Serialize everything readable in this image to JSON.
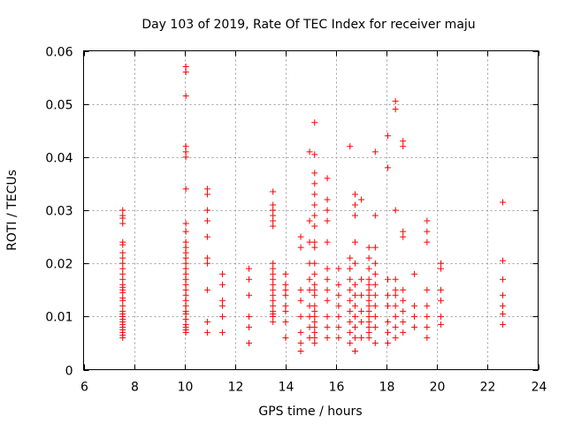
{
  "chart_data": {
    "type": "scatter",
    "title": "Day 103 of 2019, Rate Of TEC Index for receiver maju",
    "xlabel": "GPS time / hours",
    "ylabel": "ROTI / TECUs",
    "xlim": [
      6,
      24
    ],
    "ylim": [
      0,
      0.06
    ],
    "x_ticks": [
      "6",
      "8",
      "10",
      "12",
      "14",
      "16",
      "18",
      "20",
      "22",
      "24"
    ],
    "y_ticks": [
      "0",
      "0.01",
      "0.02",
      "0.03",
      "0.04",
      "0.05",
      "0.06"
    ],
    "grid": true,
    "marker": "+",
    "color": "#ff0000",
    "series": [
      {
        "name": "ROTI",
        "points": [
          [
            7.55,
            0.006
          ],
          [
            7.55,
            0.0065
          ],
          [
            7.55,
            0.007
          ],
          [
            7.55,
            0.0075
          ],
          [
            7.55,
            0.008
          ],
          [
            7.55,
            0.0085
          ],
          [
            7.55,
            0.009
          ],
          [
            7.55,
            0.0095
          ],
          [
            7.55,
            0.01
          ],
          [
            7.55,
            0.0105
          ],
          [
            7.55,
            0.011
          ],
          [
            7.55,
            0.012
          ],
          [
            7.55,
            0.013
          ],
          [
            7.55,
            0.0135
          ],
          [
            7.55,
            0.0145
          ],
          [
            7.55,
            0.015
          ],
          [
            7.55,
            0.0155
          ],
          [
            7.55,
            0.016
          ],
          [
            7.55,
            0.017
          ],
          [
            7.55,
            0.018
          ],
          [
            7.55,
            0.019
          ],
          [
            7.55,
            0.02
          ],
          [
            7.55,
            0.021
          ],
          [
            7.55,
            0.022
          ],
          [
            7.55,
            0.0235
          ],
          [
            7.55,
            0.024
          ],
          [
            7.55,
            0.0275
          ],
          [
            7.55,
            0.0285
          ],
          [
            7.55,
            0.029
          ],
          [
            7.55,
            0.03
          ],
          [
            10.05,
            0.007
          ],
          [
            10.05,
            0.0075
          ],
          [
            10.05,
            0.008
          ],
          [
            10.05,
            0.0085
          ],
          [
            10.05,
            0.0095
          ],
          [
            10.05,
            0.0105
          ],
          [
            10.05,
            0.011
          ],
          [
            10.05,
            0.012
          ],
          [
            10.05,
            0.013
          ],
          [
            10.05,
            0.014
          ],
          [
            10.05,
            0.015
          ],
          [
            10.05,
            0.016
          ],
          [
            10.05,
            0.017
          ],
          [
            10.05,
            0.018
          ],
          [
            10.05,
            0.019
          ],
          [
            10.05,
            0.02
          ],
          [
            10.05,
            0.021
          ],
          [
            10.05,
            0.022
          ],
          [
            10.05,
            0.023
          ],
          [
            10.05,
            0.024
          ],
          [
            10.05,
            0.026
          ],
          [
            10.05,
            0.0275
          ],
          [
            10.05,
            0.034
          ],
          [
            10.05,
            0.04
          ],
          [
            10.05,
            0.041
          ],
          [
            10.05,
            0.042
          ],
          [
            10.05,
            0.0515
          ],
          [
            10.05,
            0.056
          ],
          [
            10.05,
            0.057
          ],
          [
            10.9,
            0.007
          ],
          [
            10.9,
            0.009
          ],
          [
            10.9,
            0.015
          ],
          [
            10.9,
            0.02
          ],
          [
            10.9,
            0.021
          ],
          [
            10.9,
            0.025
          ],
          [
            10.9,
            0.028
          ],
          [
            10.9,
            0.03
          ],
          [
            10.9,
            0.033
          ],
          [
            10.9,
            0.034
          ],
          [
            11.5,
            0.007
          ],
          [
            11.5,
            0.01
          ],
          [
            11.5,
            0.012
          ],
          [
            11.5,
            0.013
          ],
          [
            11.5,
            0.016
          ],
          [
            11.5,
            0.018
          ],
          [
            12.55,
            0.005
          ],
          [
            12.55,
            0.008
          ],
          [
            12.55,
            0.01
          ],
          [
            12.55,
            0.014
          ],
          [
            12.55,
            0.017
          ],
          [
            12.55,
            0.019
          ],
          [
            13.5,
            0.009
          ],
          [
            13.5,
            0.01
          ],
          [
            13.5,
            0.0105
          ],
          [
            13.5,
            0.011
          ],
          [
            13.5,
            0.012
          ],
          [
            13.5,
            0.013
          ],
          [
            13.5,
            0.014
          ],
          [
            13.5,
            0.015
          ],
          [
            13.5,
            0.016
          ],
          [
            13.5,
            0.017
          ],
          [
            13.5,
            0.018
          ],
          [
            13.5,
            0.019
          ],
          [
            13.5,
            0.02
          ],
          [
            13.5,
            0.027
          ],
          [
            13.5,
            0.028
          ],
          [
            13.5,
            0.029
          ],
          [
            13.5,
            0.03
          ],
          [
            13.5,
            0.031
          ],
          [
            13.5,
            0.0335
          ],
          [
            14.0,
            0.006
          ],
          [
            14.0,
            0.009
          ],
          [
            14.0,
            0.011
          ],
          [
            14.0,
            0.012
          ],
          [
            14.0,
            0.014
          ],
          [
            14.0,
            0.015
          ],
          [
            14.0,
            0.016
          ],
          [
            14.0,
            0.018
          ],
          [
            14.6,
            0.0035
          ],
          [
            14.6,
            0.005
          ],
          [
            14.6,
            0.007
          ],
          [
            14.6,
            0.01
          ],
          [
            14.6,
            0.013
          ],
          [
            14.6,
            0.015
          ],
          [
            14.6,
            0.023
          ],
          [
            14.6,
            0.025
          ],
          [
            14.95,
            0.006
          ],
          [
            14.95,
            0.008
          ],
          [
            14.95,
            0.01
          ],
          [
            14.95,
            0.012
          ],
          [
            14.95,
            0.015
          ],
          [
            14.95,
            0.017
          ],
          [
            14.95,
            0.02
          ],
          [
            14.95,
            0.024
          ],
          [
            14.95,
            0.028
          ],
          [
            14.95,
            0.041
          ],
          [
            15.15,
            0.005
          ],
          [
            15.15,
            0.006
          ],
          [
            15.15,
            0.007
          ],
          [
            15.15,
            0.008
          ],
          [
            15.15,
            0.009
          ],
          [
            15.15,
            0.01
          ],
          [
            15.15,
            0.011
          ],
          [
            15.15,
            0.012
          ],
          [
            15.15,
            0.014
          ],
          [
            15.15,
            0.015
          ],
          [
            15.15,
            0.016
          ],
          [
            15.15,
            0.018
          ],
          [
            15.15,
            0.02
          ],
          [
            15.15,
            0.023
          ],
          [
            15.15,
            0.024
          ],
          [
            15.15,
            0.027
          ],
          [
            15.15,
            0.029
          ],
          [
            15.15,
            0.031
          ],
          [
            15.15,
            0.033
          ],
          [
            15.15,
            0.035
          ],
          [
            15.15,
            0.037
          ],
          [
            15.15,
            0.0405
          ],
          [
            15.15,
            0.0465
          ],
          [
            15.65,
            0.006
          ],
          [
            15.65,
            0.008
          ],
          [
            15.65,
            0.01
          ],
          [
            15.65,
            0.013
          ],
          [
            15.65,
            0.015
          ],
          [
            15.65,
            0.017
          ],
          [
            15.65,
            0.019
          ],
          [
            15.65,
            0.024
          ],
          [
            15.65,
            0.028
          ],
          [
            15.65,
            0.03
          ],
          [
            15.65,
            0.032
          ],
          [
            15.65,
            0.036
          ],
          [
            16.1,
            0.006
          ],
          [
            16.1,
            0.008
          ],
          [
            16.1,
            0.01
          ],
          [
            16.1,
            0.012
          ],
          [
            16.1,
            0.014
          ],
          [
            16.1,
            0.016
          ],
          [
            16.1,
            0.019
          ],
          [
            16.55,
            0.005
          ],
          [
            16.55,
            0.007
          ],
          [
            16.55,
            0.009
          ],
          [
            16.55,
            0.011
          ],
          [
            16.55,
            0.013
          ],
          [
            16.55,
            0.015
          ],
          [
            16.55,
            0.017
          ],
          [
            16.55,
            0.019
          ],
          [
            16.55,
            0.021
          ],
          [
            16.55,
            0.042
          ],
          [
            16.75,
            0.0035
          ],
          [
            16.75,
            0.006
          ],
          [
            16.75,
            0.008
          ],
          [
            16.75,
            0.01
          ],
          [
            16.75,
            0.012
          ],
          [
            16.75,
            0.014
          ],
          [
            16.75,
            0.016
          ],
          [
            16.75,
            0.02
          ],
          [
            16.75,
            0.024
          ],
          [
            16.75,
            0.029
          ],
          [
            16.75,
            0.031
          ],
          [
            16.75,
            0.033
          ],
          [
            17.0,
            0.006
          ],
          [
            17.0,
            0.009
          ],
          [
            17.0,
            0.011
          ],
          [
            17.0,
            0.014
          ],
          [
            17.0,
            0.017
          ],
          [
            17.0,
            0.032
          ],
          [
            17.3,
            0.006
          ],
          [
            17.3,
            0.007
          ],
          [
            17.3,
            0.008
          ],
          [
            17.3,
            0.009
          ],
          [
            17.3,
            0.01
          ],
          [
            17.3,
            0.011
          ],
          [
            17.3,
            0.012
          ],
          [
            17.3,
            0.013
          ],
          [
            17.3,
            0.014
          ],
          [
            17.3,
            0.015
          ],
          [
            17.3,
            0.016
          ],
          [
            17.3,
            0.017
          ],
          [
            17.3,
            0.019
          ],
          [
            17.3,
            0.021
          ],
          [
            17.3,
            0.023
          ],
          [
            17.55,
            0.005
          ],
          [
            17.55,
            0.008
          ],
          [
            17.55,
            0.01
          ],
          [
            17.55,
            0.012
          ],
          [
            17.55,
            0.014
          ],
          [
            17.55,
            0.016
          ],
          [
            17.55,
            0.018
          ],
          [
            17.55,
            0.02
          ],
          [
            17.55,
            0.023
          ],
          [
            17.55,
            0.029
          ],
          [
            17.55,
            0.041
          ],
          [
            18.05,
            0.005
          ],
          [
            18.05,
            0.007
          ],
          [
            18.05,
            0.009
          ],
          [
            18.05,
            0.012
          ],
          [
            18.05,
            0.014
          ],
          [
            18.05,
            0.017
          ],
          [
            18.05,
            0.038
          ],
          [
            18.05,
            0.044
          ],
          [
            18.35,
            0.006
          ],
          [
            18.35,
            0.008
          ],
          [
            18.35,
            0.01
          ],
          [
            18.35,
            0.012
          ],
          [
            18.35,
            0.014
          ],
          [
            18.35,
            0.015
          ],
          [
            18.35,
            0.017
          ],
          [
            18.35,
            0.03
          ],
          [
            18.35,
            0.049
          ],
          [
            18.35,
            0.0505
          ],
          [
            18.65,
            0.007
          ],
          [
            18.65,
            0.009
          ],
          [
            18.65,
            0.011
          ],
          [
            18.65,
            0.013
          ],
          [
            18.65,
            0.015
          ],
          [
            18.65,
            0.025
          ],
          [
            18.65,
            0.026
          ],
          [
            18.65,
            0.042
          ],
          [
            18.65,
            0.043
          ],
          [
            19.1,
            0.008
          ],
          [
            19.1,
            0.01
          ],
          [
            19.1,
            0.012
          ],
          [
            19.1,
            0.018
          ],
          [
            19.6,
            0.006
          ],
          [
            19.6,
            0.008
          ],
          [
            19.6,
            0.01
          ],
          [
            19.6,
            0.012
          ],
          [
            19.6,
            0.015
          ],
          [
            19.6,
            0.024
          ],
          [
            19.6,
            0.026
          ],
          [
            19.6,
            0.028
          ],
          [
            20.15,
            0.0085
          ],
          [
            20.15,
            0.01
          ],
          [
            20.15,
            0.013
          ],
          [
            20.15,
            0.015
          ],
          [
            20.15,
            0.019
          ],
          [
            20.15,
            0.02
          ],
          [
            22.6,
            0.0085
          ],
          [
            22.6,
            0.0105
          ],
          [
            22.6,
            0.012
          ],
          [
            22.6,
            0.014
          ],
          [
            22.6,
            0.017
          ],
          [
            22.6,
            0.0205
          ],
          [
            22.6,
            0.0315
          ]
        ]
      }
    ]
  }
}
